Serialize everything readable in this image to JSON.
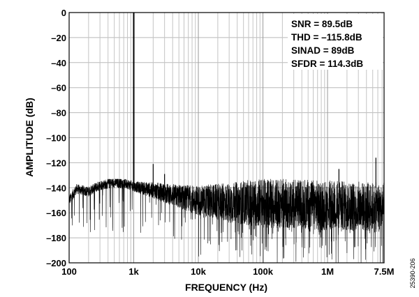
{
  "chart_data": {
    "type": "line",
    "title": "",
    "xlabel": "FREQUENCY (Hz)",
    "ylabel": "AMPLITUDE (dB)",
    "x_scale": "log",
    "xlim": [
      100,
      7500000
    ],
    "ylim": [
      -200,
      0
    ],
    "x_ticks": [
      {
        "value": 100,
        "label": "100"
      },
      {
        "value": 1000,
        "label": "1k"
      },
      {
        "value": 10000,
        "label": "10k"
      },
      {
        "value": 100000,
        "label": "100k"
      },
      {
        "value": 1000000,
        "label": "1M"
      },
      {
        "value": 7500000,
        "label": "7.5M"
      }
    ],
    "y_ticks": [
      {
        "value": 0,
        "label": "0"
      },
      {
        "value": -20,
        "label": "–20"
      },
      {
        "value": -40,
        "label": "–40"
      },
      {
        "value": -60,
        "label": "–60"
      },
      {
        "value": -80,
        "label": "–80"
      },
      {
        "value": -100,
        "label": "–100"
      },
      {
        "value": -120,
        "label": "–120"
      },
      {
        "value": -140,
        "label": "–140"
      },
      {
        "value": -160,
        "label": "–160"
      },
      {
        "value": -180,
        "label": "–180"
      },
      {
        "value": -200,
        "label": "–200"
      }
    ],
    "grid": true,
    "legend": "none",
    "series_color": "#000000",
    "fundamental": {
      "x": 1000,
      "y": 0
    },
    "noise_floor": {
      "x": [
        100,
        130,
        200,
        300,
        500,
        800,
        1000,
        2000,
        5000,
        10000,
        30000,
        100000,
        300000,
        1000000,
        3000000,
        7500000
      ],
      "y": [
        -150,
        -141,
        -143,
        -138,
        -136,
        -137,
        -139,
        -142,
        -147,
        -150,
        -152,
        -152,
        -153,
        -154,
        -155,
        -156
      ]
    },
    "spurs": [
      {
        "x": 2000,
        "y": -121
      },
      {
        "x": 3000,
        "y": -129
      },
      {
        "x": 1500000,
        "y": -125
      },
      {
        "x": 5600000,
        "y": -116
      }
    ],
    "annotations": [
      "SNR = 89.5dB",
      "THD = –115.8dB",
      "SINAD = 89dB",
      "SFDR = 114.3dB"
    ]
  },
  "figure_id": "25390-206"
}
